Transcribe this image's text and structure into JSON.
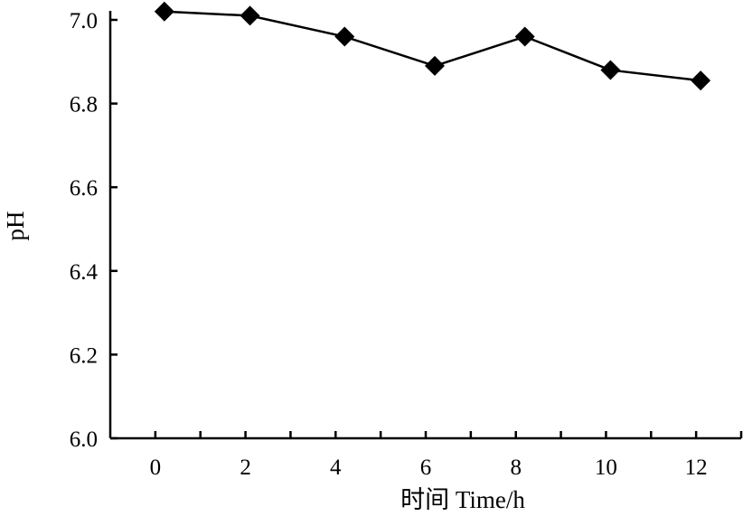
{
  "chart_data": {
    "type": "line",
    "title": "",
    "xlabel": "时间 Time/h",
    "ylabel": "pH",
    "xlim": [
      -1,
      13
    ],
    "ylim": [
      6.0,
      7.0
    ],
    "x_ticks": [
      0,
      2,
      4,
      6,
      8,
      10,
      12
    ],
    "y_ticks": [
      6.0,
      6.2,
      6.4,
      6.6,
      6.8,
      7.0
    ],
    "y_tick_labels": [
      "6.0",
      "6.2",
      "6.4",
      "6.6",
      "6.8",
      "7.0"
    ],
    "grid": false,
    "legend": "none",
    "marker": "diamond",
    "color": "#000000",
    "series": [
      {
        "x": [
          0.2,
          2.1,
          4.2,
          6.2,
          8.2,
          10.1,
          12.1
        ],
        "y": [
          7.02,
          7.01,
          6.96,
          6.89,
          6.96,
          6.88,
          6.855
        ]
      }
    ]
  }
}
